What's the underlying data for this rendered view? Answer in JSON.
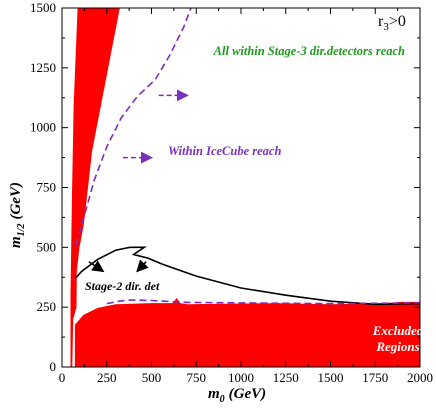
{
  "chart_data": {
    "type": "area",
    "xlabel": "m",
    "xlabel_sub": "0",
    "xlabel_unit": "(GeV)",
    "ylabel": "m",
    "ylabel_sub": "1/2",
    "ylabel_unit": "(GeV)",
    "xlim": [
      0,
      2000
    ],
    "ylim": [
      0,
      1500
    ],
    "x_ticks": [
      0,
      250,
      500,
      750,
      1000,
      1250,
      1500,
      1750,
      2000
    ],
    "y_ticks": [
      0,
      250,
      500,
      750,
      1000,
      1250,
      1500
    ],
    "grid": false,
    "corner_label": "r",
    "corner_label_sub": "3",
    "corner_label_rest": ">0",
    "colors": {
      "excluded": "#ff0000",
      "stage2": "#000000",
      "icecube": "#7b2fbe",
      "stage3_text": "#1f9a1f",
      "icecube_text": "#7b2fbe",
      "excluded_text": "#ffffff"
    },
    "annotations": {
      "stage3": "All within Stage-3 dir.detectors reach",
      "icecube": "Within IceCube reach",
      "stage2": "Stage-2 dir. det",
      "excluded_line1": "Excluded",
      "excluded_line2": "Regions"
    },
    "series": [
      {
        "kind": "region",
        "points": [
          [
            50,
            0
          ],
          [
            50,
            300
          ],
          [
            58,
            700
          ],
          [
            68,
            1100
          ],
          [
            90,
            1500
          ],
          [
            320,
            1500
          ],
          [
            165,
            900
          ],
          [
            120,
            600
          ],
          [
            95,
            500
          ],
          [
            80,
            400
          ],
          [
            78,
            250
          ],
          [
            60,
            200
          ],
          [
            55,
            0
          ]
        ]
      },
      {
        "kind": "region",
        "points": [
          [
            75,
            0
          ],
          [
            75,
            175
          ],
          [
            120,
            215
          ],
          [
            200,
            245
          ],
          [
            300,
            260
          ],
          [
            500,
            265
          ],
          [
            620,
            265
          ],
          [
            640,
            285
          ],
          [
            660,
            265
          ],
          [
            700,
            260
          ],
          [
            900,
            262
          ],
          [
            1200,
            265
          ],
          [
            1500,
            260
          ],
          [
            1800,
            265
          ],
          [
            1900,
            270
          ],
          [
            2000,
            270
          ],
          [
            2000,
            0
          ]
        ]
      },
      {
        "kind": "line",
        "points": [
          [
            75,
            370
          ],
          [
            110,
            400
          ],
          [
            200,
            450
          ],
          [
            300,
            488
          ],
          [
            380,
            500
          ],
          [
            460,
            500
          ],
          [
            400,
            470
          ],
          [
            480,
            455
          ],
          [
            560,
            430
          ],
          [
            750,
            380
          ],
          [
            1000,
            330
          ],
          [
            1250,
            300
          ],
          [
            1500,
            275
          ],
          [
            1750,
            262
          ],
          [
            2000,
            265
          ]
        ]
      },
      {
        "kind": "dashed",
        "points": [
          [
            78,
            510
          ],
          [
            120,
            620
          ],
          [
            180,
            780
          ],
          [
            250,
            920
          ],
          [
            330,
            1040
          ],
          [
            420,
            1130
          ],
          [
            520,
            1200
          ],
          [
            600,
            1300
          ],
          [
            680,
            1420
          ],
          [
            720,
            1500
          ]
        ]
      },
      {
        "kind": "dashed",
        "points": [
          [
            250,
            265
          ],
          [
            320,
            275
          ],
          [
            380,
            280
          ],
          [
            500,
            278
          ],
          [
            700,
            270
          ],
          [
            1000,
            268
          ],
          [
            1500,
            265
          ],
          [
            2000,
            268
          ]
        ]
      },
      {
        "kind": "arrow",
        "from": [
          540,
          1135
        ],
        "to": [
          700,
          1135
        ]
      },
      {
        "kind": "arrow",
        "from": [
          340,
          875
        ],
        "to": [
          500,
          875
        ]
      },
      {
        "kind": "arrow",
        "from": [
          150,
          440
        ],
        "to": [
          230,
          400
        ]
      },
      {
        "kind": "arrow",
        "from": [
          470,
          440
        ],
        "to": [
          420,
          400
        ]
      }
    ]
  }
}
